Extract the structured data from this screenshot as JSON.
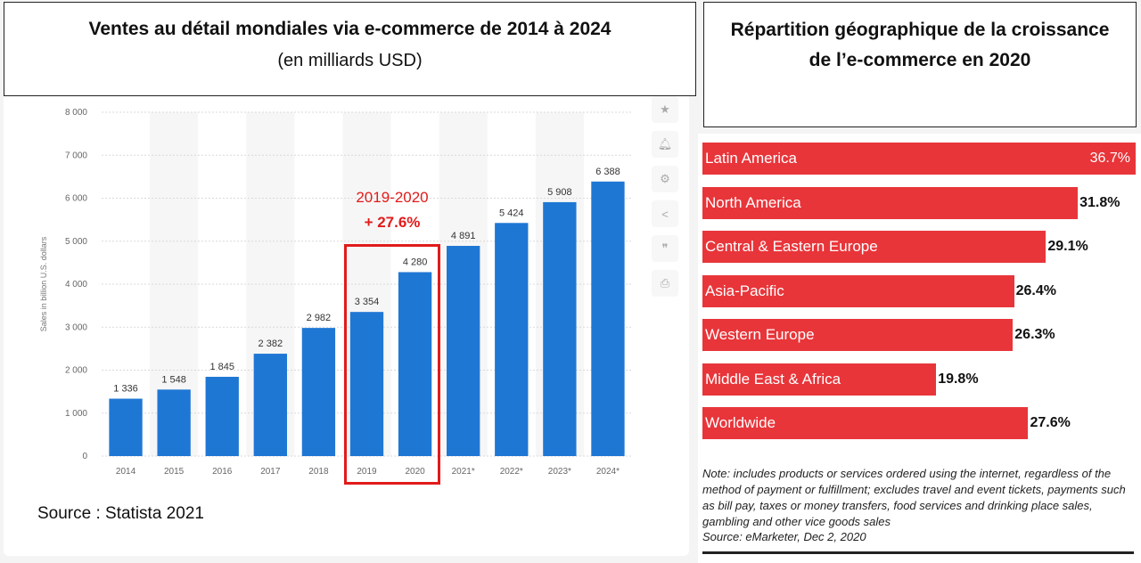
{
  "left": {
    "title": "Ventes au détail mondiales via e-commerce de 2014 à 2024",
    "subtitle": "(en milliards USD)",
    "highlight_range": "2019-2020",
    "highlight_value": "+ 27.6%",
    "source": "Source : Statista 2021"
  },
  "toolbar": [
    "star-icon",
    "bell-icon",
    "gear-icon",
    "share-icon",
    "quote-icon",
    "print-icon"
  ],
  "right": {
    "title": "Répartition géographique de la croissance de l’e-commerce en 2020",
    "note": "Note: includes products or services ordered using the internet, regardless of the method of payment or fulfillment; excludes travel and event tickets, payments such as bill pay, taxes or money transfers, food services and drinking place sales, gambling and other vice goods sales",
    "source": "Source: eMarketer, Dec 2, 2020"
  },
  "colors": {
    "bar": "#1f77d4",
    "hbar": "#e8353a",
    "highlight": "#e11b1b"
  },
  "chart_data": [
    {
      "type": "bar",
      "title": "Ventes au détail mondiales via e-commerce de 2014 à 2024",
      "ylabel": "Sales in billion U.S. dollars",
      "ylim": [
        0,
        8000
      ],
      "yticks": [
        0,
        1000,
        2000,
        3000,
        4000,
        5000,
        6000,
        7000,
        8000
      ],
      "ytick_labels": [
        "0",
        "1 000",
        "2 000",
        "3 000",
        "4 000",
        "5 000",
        "6 000",
        "7 000",
        "8 000"
      ],
      "grid": true,
      "categories": [
        "2014",
        "2015",
        "2016",
        "2017",
        "2018",
        "2019",
        "2020",
        "2021*",
        "2022*",
        "2023*",
        "2024*"
      ],
      "values": [
        1336,
        1548,
        1845,
        2382,
        2982,
        3354,
        4280,
        4891,
        5424,
        5908,
        6388
      ],
      "value_labels": [
        "1 336",
        "1 548",
        "1 845",
        "2 382",
        "2 982",
        "3 354",
        "4 280",
        "4 891",
        "5 424",
        "5 908",
        "6 388"
      ]
    },
    {
      "type": "bar",
      "orientation": "horizontal",
      "title": "Répartition géographique de la croissance de l’e-commerce en 2020",
      "categories": [
        "Latin America",
        "North America",
        "Central & Eastern Europe",
        "Asia-Pacific",
        "Western Europe",
        "Middle East & Africa",
        "Worldwide"
      ],
      "values": [
        36.7,
        31.8,
        29.1,
        26.4,
        26.3,
        19.8,
        27.6
      ],
      "value_labels": [
        "36.7%",
        "31.8%",
        "29.1%",
        "26.4%",
        "26.3%",
        "19.8%",
        "27.6%"
      ]
    }
  ]
}
